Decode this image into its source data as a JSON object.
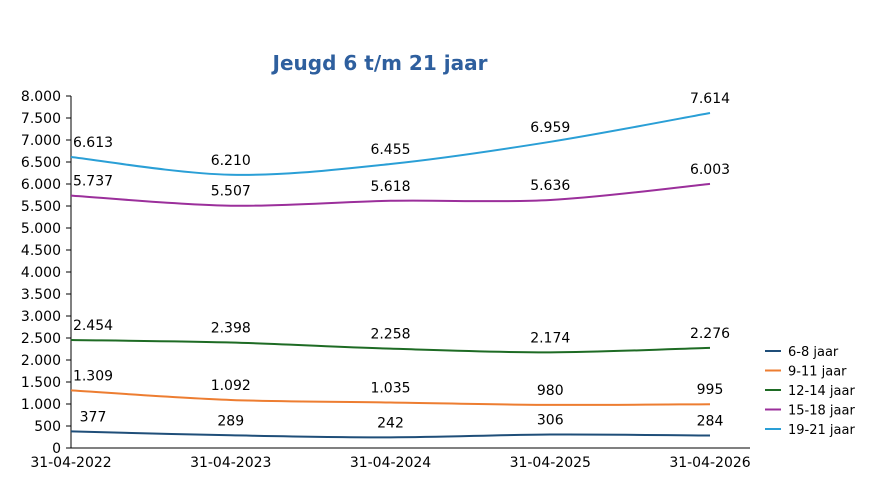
{
  "chart_data": {
    "type": "line",
    "title": "Jeugd 6 t/m 21 jaar",
    "categories": [
      "31-04-2022",
      "31-04-2023",
      "31-04-2024",
      "31-04-2025",
      "31-04-2026"
    ],
    "ylim": [
      0,
      8000
    ],
    "yticks": [
      0,
      500,
      1000,
      1500,
      2000,
      2500,
      3000,
      3500,
      4000,
      4500,
      5000,
      5500,
      6000,
      6500,
      7000,
      7500,
      8000
    ],
    "ytick_labels": [
      "0",
      "500",
      "1.000",
      "1.500",
      "2.000",
      "2.500",
      "3.000",
      "3.500",
      "4.000",
      "4.500",
      "5.000",
      "5.500",
      "6.000",
      "6.500",
      "7.000",
      "7.500",
      "8.000"
    ],
    "grid": false,
    "smooth": true,
    "legend_position": "right",
    "series": [
      {
        "name": "6-8 jaar",
        "color": "#1f4e79",
        "values": [
          377,
          289,
          242,
          306,
          284
        ],
        "labels": [
          "377",
          "289",
          "242",
          "306",
          "284"
        ]
      },
      {
        "name": "9-11 jaar",
        "color": "#ed7d31",
        "values": [
          1309,
          1092,
          1035,
          980,
          995
        ],
        "labels": [
          "1.309",
          "1.092",
          "1.035",
          "980",
          "995"
        ]
      },
      {
        "name": "12-14 jaar",
        "color": "#1e6b24",
        "values": [
          2454,
          2398,
          2258,
          2174,
          2276
        ],
        "labels": [
          "2.454",
          "2.398",
          "2.258",
          "2.174",
          "2.276"
        ]
      },
      {
        "name": "15-18 jaar",
        "color": "#9b2f9b",
        "values": [
          5737,
          5507,
          5618,
          5636,
          6003
        ],
        "labels": [
          "5.737",
          "5.507",
          "5.618",
          "5.636",
          "6.003"
        ]
      },
      {
        "name": "19-21 jaar",
        "color": "#2a9fd6",
        "values": [
          6613,
          6210,
          6455,
          6959,
          7614
        ],
        "labels": [
          "6.613",
          "6.210",
          "6.455",
          "6.959",
          "7.614"
        ]
      }
    ],
    "title_color": "#2e5f9e"
  }
}
